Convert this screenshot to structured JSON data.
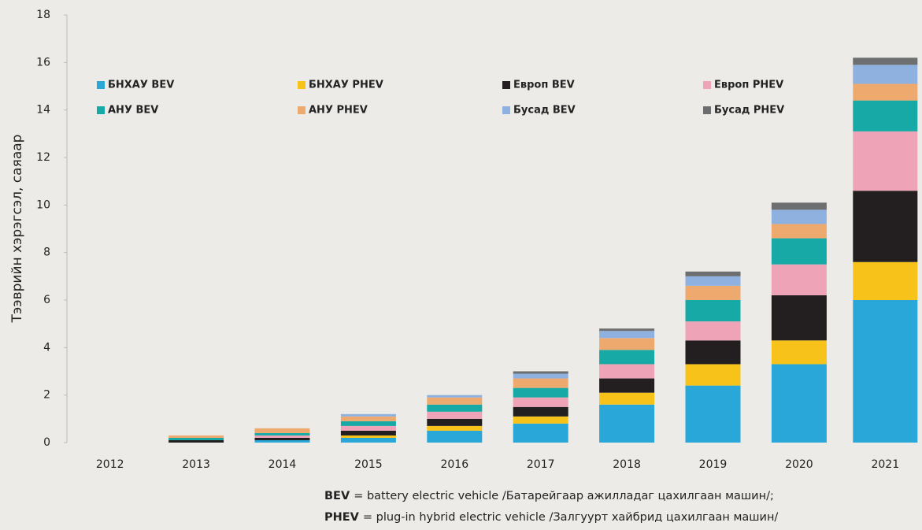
{
  "chart_data": {
    "type": "stacked_bar",
    "y_label": "Тээврийн хэрэгсэл, саяаар",
    "categories": [
      "2012",
      "2013",
      "2014",
      "2015",
      "2016",
      "2017",
      "2018",
      "2019",
      "2020",
      "2021"
    ],
    "series": [
      {
        "name": "БНХАУ BEV",
        "color": "#2aa7d9",
        "values": [
          0,
          0,
          0.1,
          0.2,
          0.5,
          0.8,
          1.6,
          2.4,
          3.3,
          6.0
        ]
      },
      {
        "name": "БНХАУ PHEV",
        "color": "#f7c21a",
        "values": [
          0,
          0,
          0,
          0.1,
          0.2,
          0.3,
          0.5,
          0.9,
          1.0,
          1.6
        ]
      },
      {
        "name": "Европ BEV",
        "color": "#231f20",
        "values": [
          0,
          0.1,
          0.1,
          0.2,
          0.3,
          0.4,
          0.6,
          1.0,
          1.9,
          3.0
        ]
      },
      {
        "name": "Европ PHEV",
        "color": "#efa3b6",
        "values": [
          0,
          0,
          0.1,
          0.2,
          0.3,
          0.4,
          0.6,
          0.8,
          1.3,
          2.5
        ]
      },
      {
        "name": "АНУ BEV",
        "color": "#17a9a5",
        "values": [
          0,
          0.1,
          0.1,
          0.2,
          0.3,
          0.4,
          0.6,
          0.9,
          1.1,
          1.3
        ]
      },
      {
        "name": "АНУ PHEV",
        "color": "#eeaa6e",
        "values": [
          0,
          0.1,
          0.2,
          0.2,
          0.3,
          0.4,
          0.5,
          0.6,
          0.6,
          0.7
        ]
      },
      {
        "name": "Бусад BEV",
        "color": "#8fb1e0",
        "values": [
          0,
          0,
          0,
          0.1,
          0.1,
          0.2,
          0.3,
          0.4,
          0.6,
          0.8
        ]
      },
      {
        "name": "Бусад PHEV",
        "color": "#6d6e70",
        "values": [
          0,
          0,
          0,
          0,
          0,
          0.1,
          0.1,
          0.2,
          0.3,
          0.3
        ]
      }
    ],
    "ylim": [
      0,
      18
    ],
    "yticks": [
      0,
      2,
      4,
      6,
      8,
      10,
      12,
      14,
      16,
      18
    ],
    "legend": "upper left",
    "notes": [
      {
        "term": "BEV",
        "text": "= battery electric vehicle /Батарейгаар ажилладаг цахилгаан машин/;"
      },
      {
        "term": "PHEV",
        "text": "= plug-in hybrid electric vehicle /Залгуурт хайбрид цахилгаан машин/"
      }
    ]
  }
}
